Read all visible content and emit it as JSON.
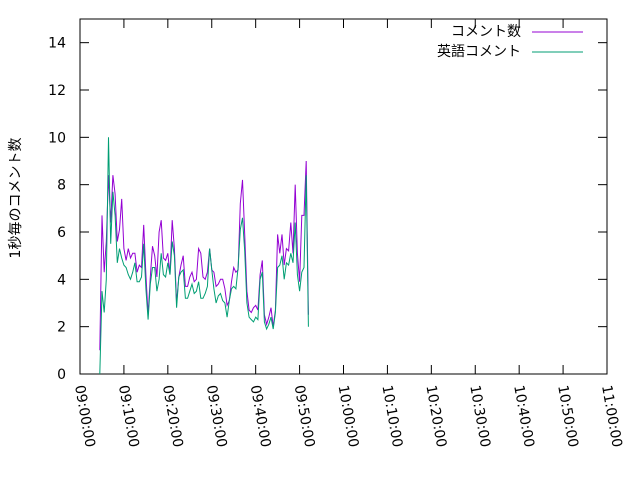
{
  "chart_data": {
    "type": "line",
    "ylabel": "1秒毎のコメント数",
    "xlabel": "",
    "title": "",
    "xlim": [
      "09:00:00",
      "11:00:00"
    ],
    "ylim": [
      0,
      15
    ],
    "x_ticks": [
      "09:00:00",
      "09:10:00",
      "09:20:00",
      "09:30:00",
      "09:40:00",
      "09:50:00",
      "10:00:00",
      "10:10:00",
      "10:20:00",
      "10:30:00",
      "10:40:00",
      "10:50:00",
      "11:00:00"
    ],
    "y_ticks": [
      "0",
      "2",
      "4",
      "6",
      "8",
      "10",
      "12",
      "14"
    ],
    "legend_position": "top-right",
    "grid": false,
    "x_start": "09:04:30",
    "x_step_seconds": 30,
    "series": [
      {
        "name": "コメント数",
        "color": "#9400d3",
        "values": [
          1.0,
          6.7,
          4.3,
          5.6,
          8.4,
          6.4,
          8.4,
          7.6,
          5.6,
          6.1,
          7.4,
          5.3,
          4.8,
          5.3,
          4.9,
          5.1,
          5.1,
          4.3,
          4.6,
          4.5,
          6.3,
          4.2,
          2.5,
          4.1,
          5.4,
          5.0,
          4.1,
          6.0,
          6.5,
          4.9,
          4.8,
          5.1,
          4.2,
          6.5,
          5.3,
          3.0,
          4.1,
          4.6,
          5.0,
          3.7,
          3.7,
          4.1,
          4.3,
          3.9,
          4.0,
          5.3,
          5.1,
          4.1,
          4.0,
          4.3,
          5.3,
          4.4,
          4.3,
          3.7,
          3.8,
          4.0,
          4.0,
          3.6,
          2.9,
          3.1,
          3.9,
          4.5,
          4.3,
          4.4,
          7.2,
          8.2,
          5.9,
          3.5,
          2.7,
          2.6,
          2.8,
          2.9,
          2.7,
          4.2,
          4.8,
          2.5,
          2.1,
          2.4,
          2.8,
          2.0,
          2.7,
          5.9,
          5.1,
          5.9,
          4.6,
          5.3,
          5.2,
          6.4,
          5.1,
          8.0,
          5.1,
          3.9,
          6.7,
          6.7,
          9.0,
          2.5
        ]
      },
      {
        "name": "英語コメント",
        "color": "#009e73",
        "values": [
          0.0,
          3.5,
          2.6,
          4.0,
          10.0,
          5.5,
          7.7,
          6.7,
          4.7,
          5.3,
          4.9,
          4.6,
          4.5,
          4.2,
          4.0,
          4.3,
          4.7,
          3.9,
          3.9,
          4.1,
          5.5,
          3.6,
          2.3,
          3.8,
          4.5,
          4.5,
          3.5,
          4.0,
          5.1,
          4.2,
          4.1,
          4.7,
          4.2,
          5.6,
          5.0,
          2.8,
          4.1,
          4.3,
          4.4,
          3.2,
          3.2,
          3.5,
          3.8,
          3.4,
          3.5,
          3.9,
          3.2,
          3.2,
          3.4,
          3.7,
          5.3,
          4.4,
          3.6,
          3.0,
          3.3,
          3.4,
          3.1,
          3.0,
          2.4,
          3.1,
          3.6,
          3.7,
          3.6,
          4.5,
          6.1,
          6.6,
          5.2,
          3.0,
          2.4,
          2.3,
          2.2,
          2.4,
          2.3,
          4.0,
          4.3,
          2.2,
          1.9,
          2.1,
          2.4,
          1.9,
          2.6,
          4.5,
          4.6,
          5.0,
          4.0,
          4.7,
          4.6,
          5.1,
          4.7,
          6.4,
          4.2,
          3.5,
          4.3,
          4.5,
          8.4,
          2.0
        ]
      }
    ]
  }
}
